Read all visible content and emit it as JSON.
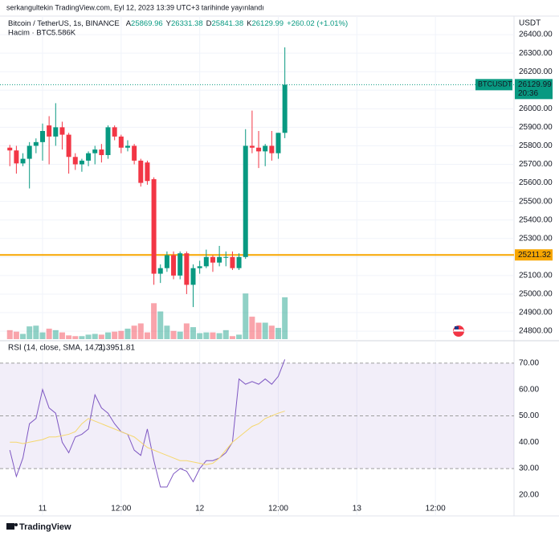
{
  "header": {
    "publisher": "serkangultekin TradingView.com, Eyl 12, 2023 13:39 UTC+3 tarihinde yayınlandı"
  },
  "chart_data": {
    "type": "candlestick",
    "title": "Bitcoin / TetherUS, 1s, BINANCE",
    "ohlc_letters": [
      "A",
      "Y",
      "D",
      "K"
    ],
    "change": "+260.02 (+1.01%)",
    "currency": "USDT",
    "x": [
      0,
      1,
      2,
      3,
      4,
      5,
      6,
      7,
      8,
      9,
      10,
      11,
      12,
      13,
      14,
      15,
      16,
      17,
      18,
      19,
      20,
      21,
      22,
      23,
      24,
      25,
      26,
      27,
      28,
      29,
      30,
      31,
      32,
      33,
      34,
      35,
      36,
      37,
      38,
      39,
      40,
      41,
      42
    ],
    "open": [
      25790,
      25775,
      25705,
      25730,
      25800,
      25820,
      25910,
      25850,
      25900,
      25860,
      25740,
      25700,
      25720,
      25760,
      25780,
      25750,
      25900,
      25850,
      25790,
      25800,
      25720,
      25710,
      25620,
      25110,
      25140,
      25210,
      25100,
      25220,
      25050,
      25140,
      25150,
      25200,
      25170,
      25200,
      25200,
      25140,
      25200,
      25800,
      25790,
      25770,
      25800,
      25760,
      25869.96
    ],
    "high": [
      25805,
      25800,
      25760,
      25820,
      25840,
      25920,
      25960,
      26030,
      25930,
      25870,
      25760,
      25730,
      25770,
      25800,
      25810,
      25910,
      25910,
      25860,
      25830,
      25810,
      25730,
      25720,
      25630,
      25160,
      25230,
      25230,
      25230,
      25230,
      25160,
      25180,
      25240,
      25210,
      25260,
      25230,
      25230,
      25220,
      25890,
      25990,
      25880,
      25810,
      25880,
      25870,
      26331.38
    ],
    "low": [
      25690,
      25650,
      25690,
      25570,
      25760,
      25720,
      25700,
      25800,
      25780,
      25650,
      25670,
      25660,
      25690,
      25700,
      25710,
      25730,
      25830,
      25760,
      25770,
      25700,
      25580,
      25590,
      25050,
      25060,
      25120,
      25080,
      25080,
      25000,
      24930,
      25110,
      25140,
      25120,
      25150,
      25150,
      25130,
      25130,
      25190,
      25760,
      25680,
      25690,
      25720,
      25730,
      25841.38
    ],
    "close": [
      25775,
      25705,
      25730,
      25800,
      25820,
      25880,
      25850,
      25900,
      25860,
      25740,
      25700,
      25720,
      25760,
      25780,
      25750,
      25900,
      25850,
      25790,
      25800,
      25720,
      25600,
      25610,
      25110,
      25140,
      25210,
      25100,
      25220,
      25050,
      25140,
      25150,
      25200,
      25170,
      25200,
      25200,
      25140,
      25200,
      25800,
      25790,
      25770,
      25800,
      25760,
      25870,
      26129.99
    ],
    "up_color": "#089981",
    "down_color": "#f23645",
    "ylim": [
      24757,
      26500
    ],
    "yticks": [
      {
        "value": 24800,
        "label": "24800.00"
      },
      {
        "value": 24900,
        "label": "24900.00"
      },
      {
        "value": 25000,
        "label": "25000.00"
      },
      {
        "value": 25100,
        "label": "25100.00"
      },
      {
        "value": 25200,
        "label": "25200.00"
      },
      {
        "value": 25300,
        "label": "25300.00"
      },
      {
        "value": 25400,
        "label": "25400.00"
      },
      {
        "value": 25500,
        "label": "25500.00"
      },
      {
        "value": 25600,
        "label": "25600.00"
      },
      {
        "value": 25700,
        "label": "25700.00"
      },
      {
        "value": 25800,
        "label": "25800.00"
      },
      {
        "value": 25900,
        "label": "25900.00"
      },
      {
        "value": 26000,
        "label": "26000.00"
      },
      {
        "value": 26100,
        "label": "26100.00"
      },
      {
        "value": 26200,
        "label": "26200.00"
      },
      {
        "value": 26300,
        "label": "26300.00"
      },
      {
        "value": 26400,
        "label": "26400.00"
      }
    ],
    "xlim": [
      -1.5,
      77
    ],
    "xticks": [
      {
        "value": 5,
        "label": "11"
      },
      {
        "value": 17,
        "label": "12:00"
      },
      {
        "value": 29,
        "label": "12"
      },
      {
        "value": 41,
        "label": "12:00"
      },
      {
        "value": 53,
        "label": "13"
      },
      {
        "value": 65,
        "label": "12:00"
      }
    ],
    "grid": true,
    "symbol": "BTCUSDT",
    "countdown": "20:36",
    "hline": {
      "value": 25211.32,
      "color": "#f7a600"
    },
    "volume": {
      "name": "Hacim · BTC",
      "values": [
        1200,
        1000,
        700,
        1700,
        1800,
        900,
        1400,
        1200,
        900,
        500,
        400,
        400,
        600,
        700,
        600,
        900,
        1000,
        1100,
        1400,
        1800,
        2100,
        900,
        4800,
        3700,
        1800,
        1100,
        1000,
        2100,
        1600,
        800,
        900,
        900,
        800,
        1200,
        400,
        600,
        6100,
        3000,
        2200,
        2200,
        1800,
        1500,
        5586
      ],
      "value_label": "5.586K"
    },
    "rsi": {
      "title": "RSI (14, close, SMA, 14, 2)",
      "ylim": [
        15.7,
        78.5
      ],
      "yticks": [
        {
          "value": 20,
          "label": "20.00"
        },
        {
          "value": 30,
          "label": "30.00"
        },
        {
          "value": 40,
          "label": "40.00"
        },
        {
          "value": 50,
          "label": "50.00"
        },
        {
          "value": 60,
          "label": "60.00"
        },
        {
          "value": 70,
          "label": "70.00"
        }
      ],
      "bands": [
        30,
        50,
        70
      ],
      "series": [
        {
          "name": "RSI",
          "color": "#7e57c2",
          "values": [
            37,
            27,
            34,
            47,
            49,
            60,
            53,
            51,
            40,
            36,
            42,
            43,
            45,
            58,
            53,
            51,
            47,
            44,
            43,
            37,
            35,
            45,
            33,
            23,
            23,
            28,
            30,
            29,
            25,
            30,
            33,
            33,
            34,
            36,
            40,
            64,
            62,
            63,
            62,
            64,
            62,
            65,
            71.39
          ]
        },
        {
          "name": "SMA",
          "color": "#f5d76e",
          "values": [
            40,
            40,
            39.5,
            40,
            40.5,
            41,
            42,
            42,
            42.5,
            43,
            44,
            47,
            49,
            48,
            47,
            46,
            45,
            44,
            43,
            42,
            40,
            38,
            37,
            36,
            35,
            34,
            33,
            33,
            32.5,
            32,
            31.5,
            32,
            34,
            37,
            40,
            42,
            44,
            46,
            47,
            49,
            50,
            51,
            51.81
          ]
        }
      ]
    }
  },
  "footer": {
    "brand": "TradingView"
  }
}
